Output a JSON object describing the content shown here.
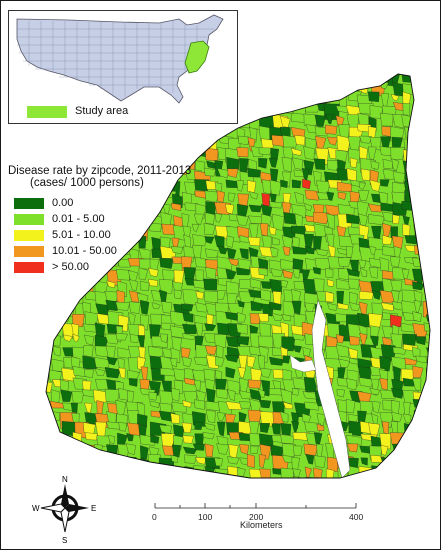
{
  "inset": {
    "legend_label": "Study area",
    "colors": {
      "us_fill": "#c7cfe6",
      "study": "#8ee637"
    }
  },
  "legend": {
    "title": "Disease rate by zipcode, 2011-2013",
    "subtitle": "(cases/ 1000 persons)",
    "items": [
      {
        "label": "0.00",
        "color": "#0d6e0d"
      },
      {
        "label": "0.01 - 5.00",
        "color": "#7fe02b"
      },
      {
        "label": "5.01 - 10.00",
        "color": "#f4f21c"
      },
      {
        "label": "10.01 - 50.00",
        "color": "#f1961f"
      },
      {
        "label": "> 50.00",
        "color": "#f0301c"
      }
    ]
  },
  "compass": {
    "n": "N",
    "e": "E",
    "s": "S",
    "w": "W",
    "icon": "compass-rose-icon"
  },
  "scale_bar": {
    "labels": [
      "0",
      "100",
      "200",
      "400"
    ],
    "unit": "Kilometers"
  }
}
